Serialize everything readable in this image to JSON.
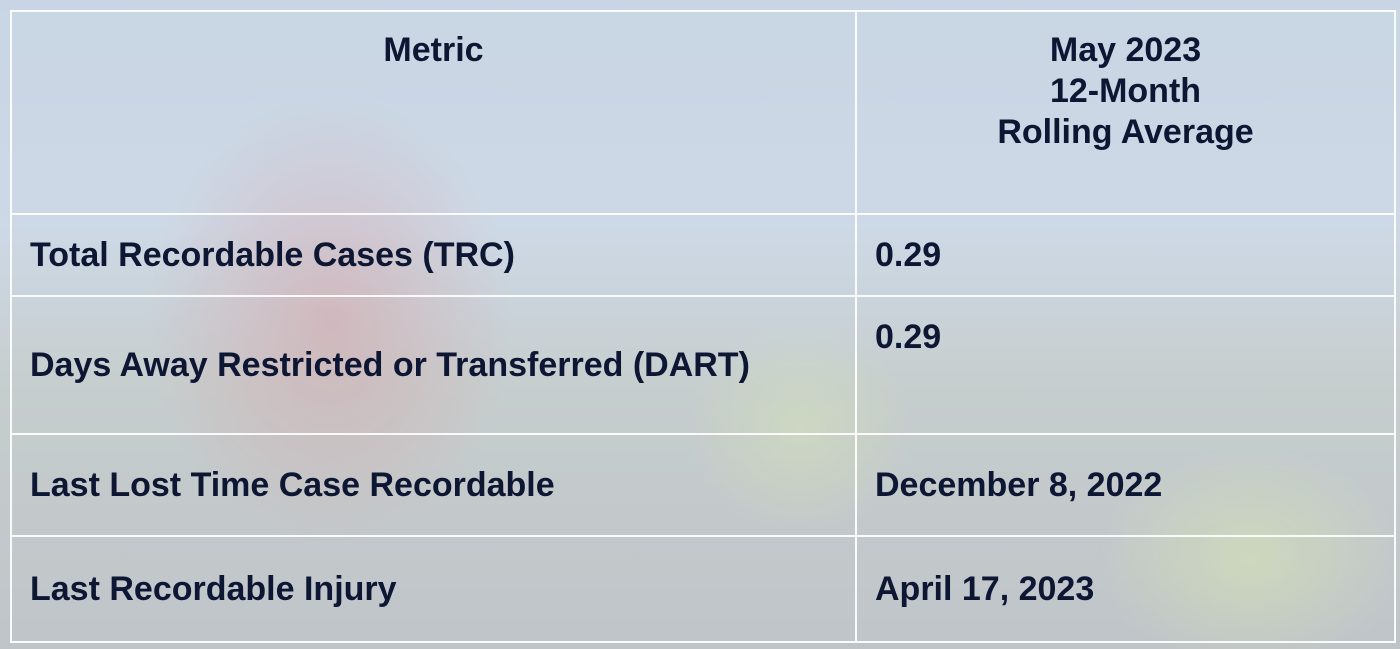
{
  "table": {
    "header": [
      "Metric",
      "May 2023\n12-Month\nRolling Average"
    ],
    "rows": [
      [
        "Total Recordable Cases (TRC)",
        "0.29"
      ],
      [
        "Days Away Restricted or Transferred (DART)",
        "0.29"
      ],
      [
        "Last Lost Time Case Recordable",
        "December 8, 2022"
      ],
      [
        "Last Recordable Injury",
        "April 17, 2023"
      ]
    ]
  }
}
